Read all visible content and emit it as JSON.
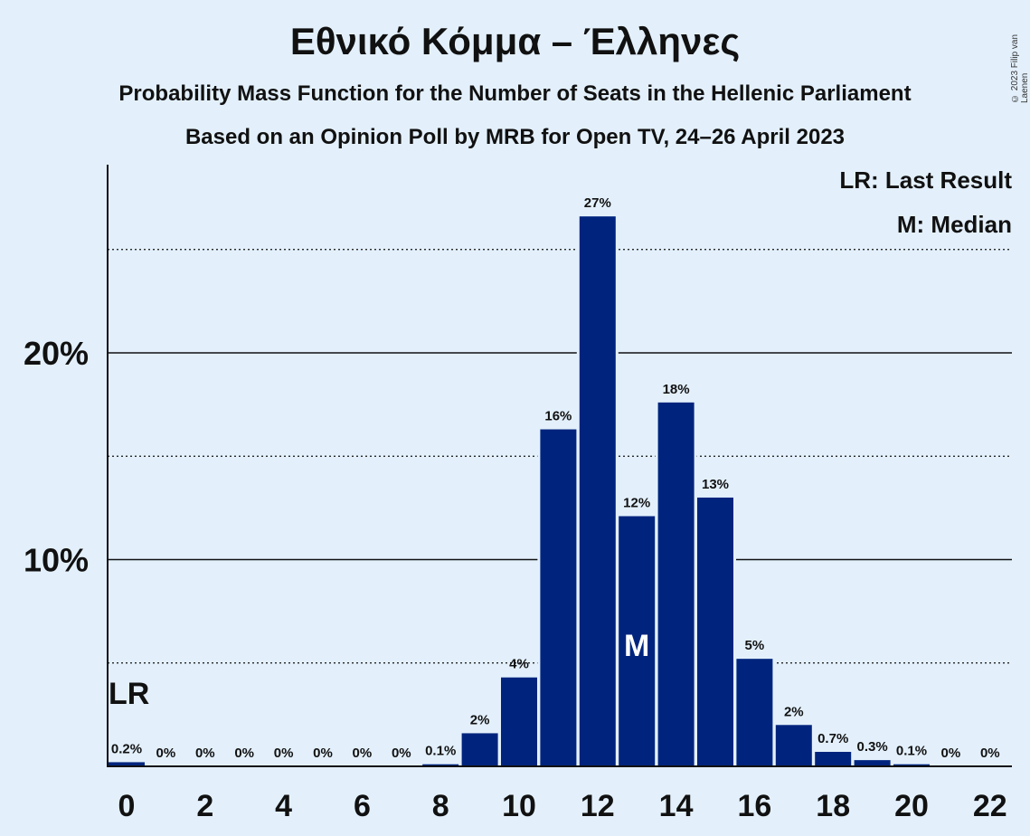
{
  "header": {
    "title": "Εθνικό Κόμμα – Έλληνες",
    "subtitle1": "Probability Mass Function for the Number of Seats in the Hellenic Parliament",
    "subtitle2": "Based on an Opinion Poll by MRB for Open TV, 24–26 April 2023",
    "copyright": "© 2023 Filip van Laenen"
  },
  "legend": {
    "last_result": "LR: Last Result",
    "median": "M: Median"
  },
  "colors": {
    "background": "#e3f0fc",
    "bar": "#00247d",
    "text": "#111111"
  },
  "chart_data": {
    "type": "bar",
    "categories": [
      0,
      1,
      2,
      3,
      4,
      5,
      6,
      7,
      8,
      9,
      10,
      11,
      12,
      13,
      14,
      15,
      16,
      17,
      18,
      19,
      20,
      21,
      22
    ],
    "values": [
      0.2,
      0,
      0,
      0,
      0,
      0,
      0,
      0,
      0.1,
      1.6,
      4.3,
      16.3,
      26.6,
      12.1,
      17.6,
      13.0,
      5.2,
      2.0,
      0.7,
      0.3,
      0.1,
      0,
      0
    ],
    "value_labels": [
      "0.2%",
      "0%",
      "0%",
      "0%",
      "0%",
      "0%",
      "0%",
      "0%",
      "0.1%",
      "2%",
      "4%",
      "16%",
      "27%",
      "12%",
      "18%",
      "13%",
      "5%",
      "2%",
      "0.7%",
      "0.3%",
      "0.1%",
      "0%",
      "0%"
    ],
    "x_tick_labels": [
      "0",
      "2",
      "4",
      "6",
      "8",
      "10",
      "12",
      "14",
      "16",
      "18",
      "20",
      "22"
    ],
    "x_tick_values": [
      0,
      2,
      4,
      6,
      8,
      10,
      12,
      14,
      16,
      18,
      20,
      22
    ],
    "y_tick_labels": [
      "10%",
      "20%"
    ],
    "y_tick_values": [
      10,
      20
    ],
    "y_dotted_gridlines": [
      5,
      15,
      25
    ],
    "ylim": [
      0,
      29
    ],
    "last_result": {
      "seats": 0,
      "label": "LR"
    },
    "median": {
      "seats": 13,
      "label": "M"
    }
  }
}
